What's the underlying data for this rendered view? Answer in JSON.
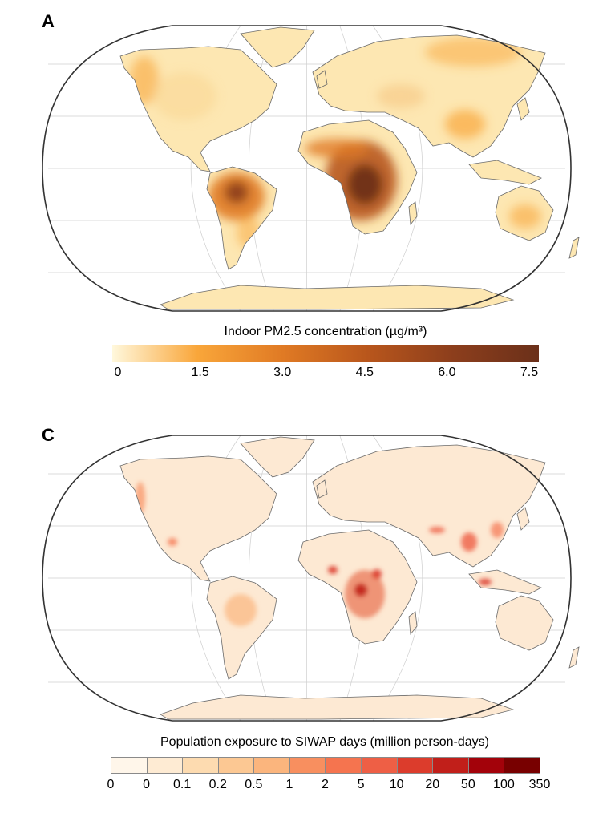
{
  "chart_data": [
    {
      "type": "heatmap",
      "panel_label": "A",
      "colorbar": {
        "title": "Indoor PM2.5 concentration (µg/m³)",
        "kind": "continuous",
        "range": [
          0,
          7.5
        ],
        "ticks": [
          "0",
          "1.5",
          "3.0",
          "4.5",
          "6.0",
          "7.5"
        ],
        "colors": [
          "#fff8dc",
          "#f9a63a",
          "#e07a24",
          "#b8561c",
          "#8c3e1c",
          "#6b301a"
        ]
      }
    },
    {
      "type": "heatmap",
      "panel_label": "C",
      "colorbar": {
        "title": "Population exposure to SIWAP days (million person-days)",
        "kind": "discrete",
        "ticks": [
          "0",
          "0",
          "0.1",
          "0.2",
          "0.5",
          "1",
          "2",
          "5",
          "10",
          "20",
          "50",
          "100",
          "350"
        ],
        "colors": [
          "#fff6ea",
          "#feebd3",
          "#fddbb0",
          "#fcc893",
          "#fbb57d",
          "#f88f5f",
          "#f5744f",
          "#ee5f45",
          "#dc3c2c",
          "#c11f1a",
          "#a3020a",
          "#780000"
        ]
      }
    }
  ]
}
